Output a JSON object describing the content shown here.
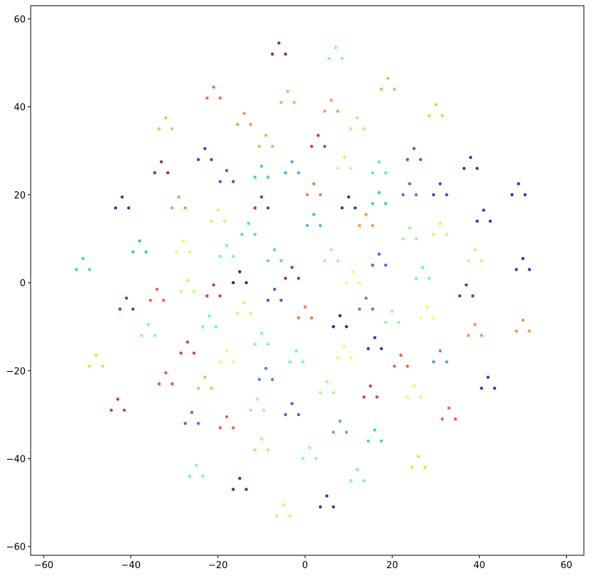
{
  "chart_data": {
    "type": "scatter",
    "xlim": [
      -63,
      64
    ],
    "ylim": [
      -62,
      63
    ],
    "xticks": [
      {
        "value": -60,
        "label": "−60"
      },
      {
        "value": -40,
        "label": "−40"
      },
      {
        "value": -20,
        "label": "−20"
      },
      0,
      20,
      40,
      60
    ],
    "yticks": [
      {
        "value": -60,
        "label": "−60"
      },
      {
        "value": -40,
        "label": "−40"
      },
      {
        "value": -20,
        "label": "−20"
      },
      0,
      20,
      40,
      60
    ],
    "series": [
      {
        "color": "#8b1010",
        "x": [
          -6,
          -4.5,
          -7.5
        ],
        "y": [
          54.5,
          52,
          52
        ]
      },
      {
        "color": "#60ffa0",
        "x": [
          7,
          8.5,
          5.5
        ],
        "y": [
          53.5,
          51,
          51
        ]
      },
      {
        "color": "#ff5020",
        "x": [
          -21,
          -19.5,
          -22.5
        ],
        "y": [
          44.5,
          42,
          42
        ]
      },
      {
        "color": "#ffa020",
        "x": [
          -4,
          -2.5,
          -5.5
        ],
        "y": [
          43.5,
          41,
          41
        ]
      },
      {
        "color": "#ffa020",
        "x": [
          19,
          20.5,
          17.5
        ],
        "y": [
          46.5,
          44,
          44
        ]
      },
      {
        "color": "#ff9020",
        "x": [
          6,
          7.5,
          4.5
        ],
        "y": [
          41.5,
          39,
          39
        ]
      },
      {
        "color": "#ff8020",
        "x": [
          -14,
          -12.5,
          -15.5
        ],
        "y": [
          38.5,
          36,
          36
        ]
      },
      {
        "color": "#ffb010",
        "x": [
          -32,
          -30.5,
          -33.5
        ],
        "y": [
          37.5,
          35,
          35
        ]
      },
      {
        "color": "#ffc010",
        "x": [
          30,
          31.5,
          28.5
        ],
        "y": [
          40.5,
          38,
          38
        ]
      },
      {
        "color": "#90ff60",
        "x": [
          12,
          13.5,
          10.5
        ],
        "y": [
          37.5,
          35,
          35
        ]
      },
      {
        "color": "#ffa020",
        "x": [
          -9,
          -7.5,
          -10.5
        ],
        "y": [
          33.5,
          31,
          31
        ]
      },
      {
        "color": "#c02020",
        "x": [
          3,
          4.5,
          1.5
        ],
        "y": [
          33.5,
          31,
          31
        ]
      },
      {
        "color": "#2020e0",
        "x": [
          -23,
          -21.5,
          -24.5
        ],
        "y": [
          30.5,
          28,
          28
        ]
      },
      {
        "color": "#2040f0",
        "x": [
          25,
          26.5,
          23.5
        ],
        "y": [
          30.5,
          28,
          28
        ]
      },
      {
        "color": "#1010b0",
        "x": [
          38,
          39.5,
          36.5
        ],
        "y": [
          28.5,
          26,
          26
        ]
      },
      {
        "color": "#8b1010",
        "x": [
          -33,
          -31.5,
          -34.5
        ],
        "y": [
          27.5,
          25,
          25
        ]
      },
      {
        "color": "#2040ff",
        "x": [
          -18,
          -16.5,
          -19.5
        ],
        "y": [
          25.5,
          23,
          23
        ]
      },
      {
        "color": "#20c0f0",
        "x": [
          -10,
          -8.5,
          -11.5
        ],
        "y": [
          26.5,
          24,
          24
        ]
      },
      {
        "color": "#20a0f0",
        "x": [
          -3,
          -1.5,
          -4.5
        ],
        "y": [
          27.5,
          25,
          25
        ]
      },
      {
        "color": "#c0ff40",
        "x": [
          9,
          10.5,
          7.5
        ],
        "y": [
          28.5,
          26,
          26
        ]
      },
      {
        "color": "#30f0d0",
        "x": [
          17,
          18.5,
          15.5
        ],
        "y": [
          27.5,
          25,
          25
        ]
      },
      {
        "color": "#1010b0",
        "x": [
          49,
          50.5,
          47.5
        ],
        "y": [
          22.5,
          20,
          20
        ]
      },
      {
        "color": "#2060f0",
        "x": [
          24,
          25.5,
          22.5
        ],
        "y": [
          22.5,
          20,
          20
        ]
      },
      {
        "color": "#2020d0",
        "x": [
          31,
          32.5,
          29.5
        ],
        "y": [
          22.5,
          20,
          20
        ]
      },
      {
        "color": "#ff6020",
        "x": [
          2,
          3.5,
          0.5
        ],
        "y": [
          22.5,
          20,
          20
        ]
      },
      {
        "color": "#1010c0",
        "x": [
          -42,
          -40.5,
          -43.5
        ],
        "y": [
          19.5,
          17,
          17
        ]
      },
      {
        "color": "#ff8020",
        "x": [
          -29,
          -27.5,
          -30.5
        ],
        "y": [
          19.5,
          17,
          17
        ]
      },
      {
        "color": "#a01010",
        "x": [
          -10,
          -8.5,
          -11.5
        ],
        "y": [
          19.5,
          17,
          17
        ]
      },
      {
        "color": "#1010a0",
        "x": [
          10,
          11.5,
          8.5
        ],
        "y": [
          19.5,
          17,
          17
        ]
      },
      {
        "color": "#10c0f0",
        "x": [
          17,
          18.5,
          15.5
        ],
        "y": [
          20.5,
          18,
          18
        ]
      },
      {
        "color": "#1010b0",
        "x": [
          41,
          42.5,
          39.5
        ],
        "y": [
          16.5,
          14,
          14
        ]
      },
      {
        "color": "#c0ff40",
        "x": [
          -20,
          -18.5,
          -21.5
        ],
        "y": [
          16.5,
          14,
          14
        ]
      },
      {
        "color": "#30d0f0",
        "x": [
          -13,
          -11.5,
          -14.5
        ],
        "y": [
          13.5,
          11,
          11
        ]
      },
      {
        "color": "#20b0f0",
        "x": [
          2,
          3.5,
          0.5
        ],
        "y": [
          15.5,
          13,
          13
        ]
      },
      {
        "color": "#ff8020",
        "x": [
          14,
          15.5,
          12.5
        ],
        "y": [
          15.5,
          13,
          13
        ]
      },
      {
        "color": "#80ff80",
        "x": [
          24,
          25.5,
          22.5
        ],
        "y": [
          12.5,
          10,
          10
        ]
      },
      {
        "color": "#ffe020",
        "x": [
          31,
          32.5,
          29.5
        ],
        "y": [
          13.5,
          11,
          11
        ]
      },
      {
        "color": "#20c0f0",
        "x": [
          -51,
          -49.5,
          -52.5
        ],
        "y": [
          5.5,
          3,
          3
        ]
      },
      {
        "color": "#20b0e0",
        "x": [
          -38,
          -36.5,
          -39.5
        ],
        "y": [
          9.5,
          7,
          7
        ]
      },
      {
        "color": "#f0ff30",
        "x": [
          -28,
          -26.5,
          -29.5
        ],
        "y": [
          9.5,
          7,
          7
        ]
      },
      {
        "color": "#40ffd0",
        "x": [
          -18,
          -16.5,
          -19.5
        ],
        "y": [
          8.5,
          6,
          6
        ]
      },
      {
        "color": "#30d0f0",
        "x": [
          -7,
          -5.5,
          -8.5
        ],
        "y": [
          7.5,
          5,
          5
        ]
      },
      {
        "color": "#80ff80",
        "x": [
          6,
          7.5,
          4.5
        ],
        "y": [
          7.5,
          5,
          5
        ]
      },
      {
        "color": "#2050f0",
        "x": [
          17,
          18.5,
          15.5
        ],
        "y": [
          6.5,
          4,
          4
        ]
      },
      {
        "color": "#c0ff40",
        "x": [
          39,
          40.5,
          37.5
        ],
        "y": [
          7.5,
          5,
          5
        ]
      },
      {
        "color": "#1010b0",
        "x": [
          50,
          51.5,
          48.5
        ],
        "y": [
          5.5,
          3,
          3
        ]
      },
      {
        "color": "#100080",
        "x": [
          -15,
          -13.5,
          -16.5
        ],
        "y": [
          2.5,
          0,
          0
        ]
      },
      {
        "color": "#a01010",
        "x": [
          -3,
          -1.5,
          -4.5
        ],
        "y": [
          3.5,
          1,
          1
        ]
      },
      {
        "color": "#f0ff30",
        "x": [
          11,
          12.5,
          9.5
        ],
        "y": [
          2.5,
          0,
          0
        ]
      },
      {
        "color": "#40ffd0",
        "x": [
          27,
          28.5,
          25.5
        ],
        "y": [
          3.5,
          1,
          1
        ]
      },
      {
        "color": "#c0ff40",
        "x": [
          -27,
          -25.5,
          -28.5
        ],
        "y": [
          0.5,
          -2,
          -2
        ]
      },
      {
        "color": "#ff4020",
        "x": [
          -34,
          -32.5,
          -35.5
        ],
        "y": [
          -1.5,
          -4,
          -4
        ]
      },
      {
        "color": "#d02020",
        "x": [
          -21,
          -19.5,
          -22.5
        ],
        "y": [
          -0.5,
          -3,
          -3
        ]
      },
      {
        "color": "#2040f0",
        "x": [
          -7,
          -5.5,
          -8.5
        ],
        "y": [
          -1.5,
          -4,
          -4
        ]
      },
      {
        "color": "#8b1010",
        "x": [
          37,
          38.5,
          35.5
        ],
        "y": [
          -0.5,
          -3,
          -3
        ]
      },
      {
        "color": "#8b1010",
        "x": [
          -41,
          -39.5,
          -42.5
        ],
        "y": [
          -3.5,
          -6,
          -6
        ]
      },
      {
        "color": "#c0ff40",
        "x": [
          -14,
          -12.5,
          -15.5
        ],
        "y": [
          -4.5,
          -7,
          -7
        ]
      },
      {
        "color": "#ff6020",
        "x": [
          0,
          1.5,
          -1.5
        ],
        "y": [
          -5.5,
          -8,
          -8
        ]
      },
      {
        "color": "#2070f0",
        "x": [
          14,
          15.5,
          12.5
        ],
        "y": [
          -3.5,
          -6,
          -6
        ]
      },
      {
        "color": "#ffff30",
        "x": [
          28,
          29.5,
          26.5
        ],
        "y": [
          -5.5,
          -8,
          -8
        ]
      },
      {
        "color": "#60ffa0",
        "x": [
          -36,
          -34.5,
          -37.5
        ],
        "y": [
          -9.5,
          -12,
          -12
        ]
      },
      {
        "color": "#40ffe0",
        "x": [
          -22,
          -20.5,
          -23.5
        ],
        "y": [
          -7.5,
          -10,
          -10
        ]
      },
      {
        "color": "#100090",
        "x": [
          8,
          9.5,
          6.5
        ],
        "y": [
          -7.5,
          -10,
          -10
        ]
      },
      {
        "color": "#80ff80",
        "x": [
          20,
          21.5,
          18.5
        ],
        "y": [
          -6.5,
          -9,
          -9
        ]
      },
      {
        "color": "#ff8020",
        "x": [
          39,
          40.5,
          37.5
        ],
        "y": [
          -9.5,
          -12,
          -12
        ]
      },
      {
        "color": "#ff8020",
        "x": [
          50,
          51.5,
          48.5
        ],
        "y": [
          -8.5,
          -11,
          -11
        ]
      },
      {
        "color": "#d02020",
        "x": [
          -27,
          -25.5,
          -28.5
        ],
        "y": [
          -13.5,
          -16,
          -16
        ]
      },
      {
        "color": "#60ffa0",
        "x": [
          -10,
          -8.5,
          -11.5
        ],
        "y": [
          -11.5,
          -14,
          -14
        ]
      },
      {
        "color": "#1010c0",
        "x": [
          16,
          17.5,
          14.5
        ],
        "y": [
          -12.5,
          -15,
          -15
        ]
      },
      {
        "color": "#2090f0",
        "x": [
          31,
          32.5,
          29.5
        ],
        "y": [
          -15.5,
          -18,
          -18
        ]
      },
      {
        "color": "#ffd010",
        "x": [
          -48,
          -46.5,
          -49.5
        ],
        "y": [
          -16.5,
          -19,
          -19
        ]
      },
      {
        "color": "#f0ff30",
        "x": [
          -18,
          -16.5,
          -19.5
        ],
        "y": [
          -15.5,
          -18,
          -18
        ]
      },
      {
        "color": "#40ffd0",
        "x": [
          -2,
          -0.5,
          -3.5
        ],
        "y": [
          -15.5,
          -18,
          -18
        ]
      },
      {
        "color": "#f0ff30",
        "x": [
          9,
          10.5,
          7.5
        ],
        "y": [
          -14.5,
          -17,
          -17
        ]
      },
      {
        "color": "#2070f0",
        "x": [
          -9,
          -7.5,
          -10.5
        ],
        "y": [
          -19.5,
          -22,
          -22
        ]
      },
      {
        "color": "#ff4020",
        "x": [
          22,
          23.5,
          20.5
        ],
        "y": [
          -16.5,
          -19,
          -19
        ]
      },
      {
        "color": "#ff3010",
        "x": [
          -32,
          -30.5,
          -33.5
        ],
        "y": [
          -20.5,
          -23,
          -23
        ]
      },
      {
        "color": "#ffb010",
        "x": [
          -23,
          -21.5,
          -24.5
        ],
        "y": [
          -21.5,
          -24,
          -24
        ]
      },
      {
        "color": "#90ff60",
        "x": [
          5,
          6.5,
          3.5
        ],
        "y": [
          -22.5,
          -25,
          -25
        ]
      },
      {
        "color": "#d02020",
        "x": [
          15,
          16.5,
          13.5
        ],
        "y": [
          -23.5,
          -26,
          -26
        ]
      },
      {
        "color": "#f0ff30",
        "x": [
          25,
          26.5,
          23.5
        ],
        "y": [
          -23.5,
          -26,
          -26
        ]
      },
      {
        "color": "#1010b0",
        "x": [
          42,
          43.5,
          40.5
        ],
        "y": [
          -21.5,
          -24,
          -24
        ]
      },
      {
        "color": "#c02020",
        "x": [
          -43,
          -41.5,
          -44.5
        ],
        "y": [
          -26.5,
          -29,
          -29
        ]
      },
      {
        "color": "#80ff80",
        "x": [
          -11,
          -9.5,
          -12.5
        ],
        "y": [
          -26.5,
          -29,
          -29
        ]
      },
      {
        "color": "#2040f0",
        "x": [
          -3,
          -1.5,
          -4.5
        ],
        "y": [
          -27.5,
          -30,
          -30
        ]
      },
      {
        "color": "#2060f0",
        "x": [
          -26,
          -24.5,
          -27.5
        ],
        "y": [
          -29.5,
          -32,
          -32
        ]
      },
      {
        "color": "#ff4020",
        "x": [
          -18,
          -16.5,
          -19.5
        ],
        "y": [
          -30.5,
          -33,
          -33
        ]
      },
      {
        "color": "#ff4020",
        "x": [
          33,
          34.5,
          31.5
        ],
        "y": [
          -28.5,
          -31,
          -31
        ]
      },
      {
        "color": "#30a0f0",
        "x": [
          8,
          9.5,
          6.5
        ],
        "y": [
          -31.5,
          -34,
          -34
        ]
      },
      {
        "color": "#20c0f0",
        "x": [
          16,
          17.5,
          14.5
        ],
        "y": [
          -33.5,
          -36,
          -36
        ]
      },
      {
        "color": "#90ff60",
        "x": [
          -10,
          -8.5,
          -11.5
        ],
        "y": [
          -35.5,
          -38,
          -38
        ]
      },
      {
        "color": "#60ffe0",
        "x": [
          1,
          2.5,
          -0.5
        ],
        "y": [
          -37.5,
          -40,
          -40
        ]
      },
      {
        "color": "#ffd010",
        "x": [
          26,
          27.5,
          24.5
        ],
        "y": [
          -39.5,
          -42,
          -42
        ]
      },
      {
        "color": "#60ffa0",
        "x": [
          -25,
          -23.5,
          -26.5
        ],
        "y": [
          -41.5,
          -44,
          -44
        ]
      },
      {
        "color": "#40ffd0",
        "x": [
          12,
          13.5,
          10.5
        ],
        "y": [
          -42.5,
          -45,
          -45
        ]
      },
      {
        "color": "#1010c0",
        "x": [
          -15,
          -13.5,
          -16.5
        ],
        "y": [
          -44.5,
          -47,
          -47
        ]
      },
      {
        "color": "#1010a0",
        "x": [
          5,
          6.5,
          3.5
        ],
        "y": [
          -48.5,
          -51,
          -51
        ]
      },
      {
        "color": "#c0ff40",
        "x": [
          -5,
          -3.5,
          -6.5
        ],
        "y": [
          -50.5,
          -53,
          -53
        ]
      }
    ]
  }
}
